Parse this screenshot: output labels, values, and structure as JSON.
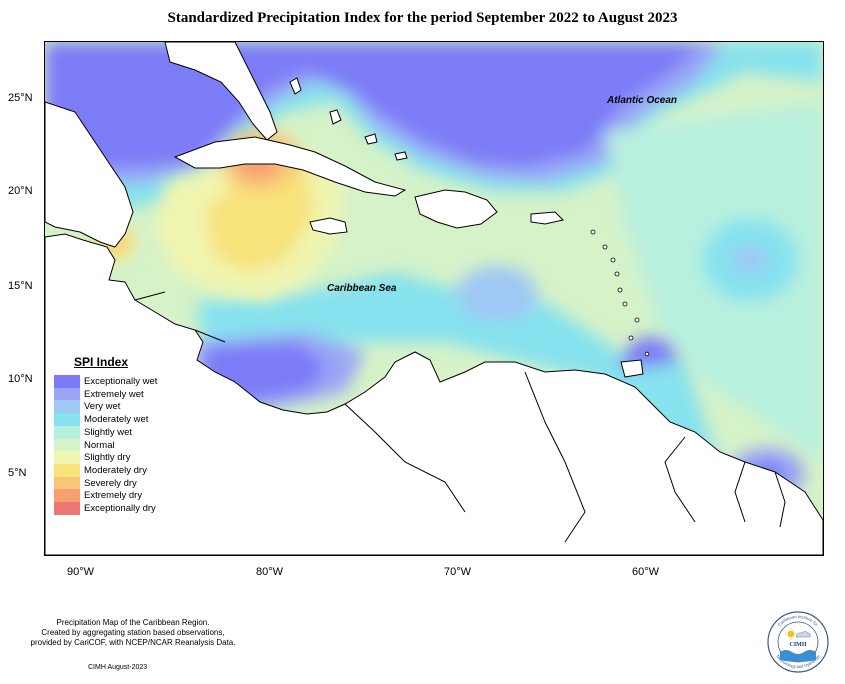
{
  "title": "Standardized Precipitation Index for the period September 2022 to August 2023",
  "latitude_labels": [
    "25°N",
    "20°N",
    "15°N",
    "10°N",
    "5°N"
  ],
  "longitude_labels": [
    "90°W",
    "80°W",
    "70°W",
    "60°W"
  ],
  "map_labels": {
    "atlantic": "Atlantic Ocean",
    "caribbean": "Caribbean Sea"
  },
  "legend": {
    "title": "SPI Index",
    "items": [
      {
        "label": "Exceptionally wet",
        "color": "#7b7bf7"
      },
      {
        "label": "Extremely wet",
        "color": "#9aa6f5"
      },
      {
        "label": "Very wet",
        "color": "#9fc8f5"
      },
      {
        "label": "Moderately wet",
        "color": "#86e2ee"
      },
      {
        "label": "Slightly wet",
        "color": "#b8f0de"
      },
      {
        "label": "Normal",
        "color": "#d5f2c8"
      },
      {
        "label": "Slightly dry",
        "color": "#f0f5b0"
      },
      {
        "label": "Moderately dry",
        "color": "#f8e27a"
      },
      {
        "label": "Severely dry",
        "color": "#f9c678"
      },
      {
        "label": "Extremely dry",
        "color": "#f6a070"
      },
      {
        "label": "Exceptionally dry",
        "color": "#f07575"
      }
    ]
  },
  "footer": {
    "line1": "Precipitation Map of the Caribbean Region.",
    "line2": "Created by aggregating station based observations,",
    "line3": "provided by CariCOF, with NCEP/NCAR Reanalysis Data.",
    "date": "CIMH August-2023"
  },
  "logo": {
    "text": "CIMH",
    "ring_top": "Caribbean Institute for",
    "ring_bottom": "Meteorology and Hydrology"
  }
}
